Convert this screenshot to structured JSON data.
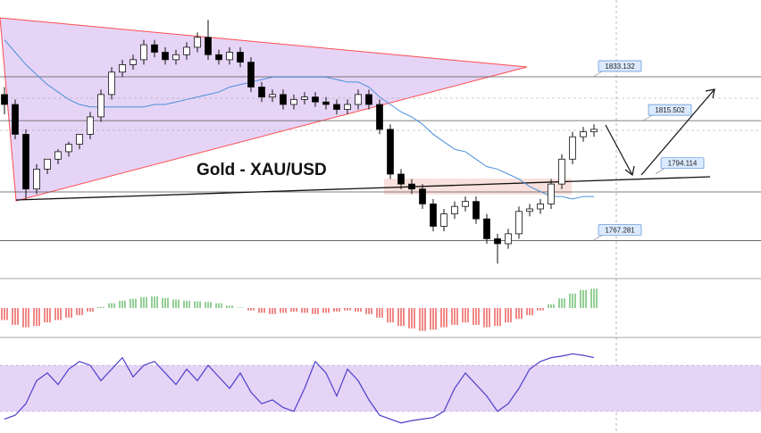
{
  "chart_data": [
    {
      "type": "candlestick",
      "title": "Gold - XAU/USD",
      "up_color": "#ffffff",
      "down_color": "#000000",
      "ylim": [
        1752,
        1864
      ],
      "levels": [
        1833.132,
        1815.502,
        1794.114,
        1767.281
      ],
      "open": [
        1826,
        1822,
        1810,
        1788,
        1796,
        1800,
        1803,
        1806,
        1810,
        1817,
        1826,
        1835,
        1838,
        1840,
        1846,
        1843,
        1840,
        1842,
        1845,
        1849,
        1842,
        1840,
        1843,
        1839,
        1829,
        1825,
        1826,
        1822,
        1824,
        1825,
        1823,
        1822,
        1820,
        1822,
        1826,
        1822,
        1812,
        1794,
        1790,
        1788,
        1782,
        1773,
        1778,
        1781,
        1783,
        1776,
        1768,
        1766,
        1770,
        1779,
        1780,
        1782,
        1790,
        1800,
        1809,
        1811
      ],
      "high": [
        1829,
        1824,
        1812,
        1798,
        1800,
        1804,
        1807,
        1810,
        1819,
        1828,
        1837,
        1840,
        1842,
        1848,
        1848,
        1845,
        1844,
        1847,
        1851,
        1856,
        1844,
        1845,
        1845,
        1841,
        1831,
        1828,
        1828,
        1826,
        1827,
        1827,
        1825,
        1824,
        1824,
        1828,
        1828,
        1824,
        1814,
        1796,
        1792,
        1790,
        1784,
        1780,
        1783,
        1785,
        1785,
        1778,
        1770,
        1772,
        1781,
        1782,
        1784,
        1792,
        1802,
        1811,
        1813,
        1814
      ],
      "low": [
        1818,
        1808,
        1784,
        1786,
        1794,
        1798,
        1801,
        1804,
        1808,
        1815,
        1824,
        1833,
        1836,
        1838,
        1841,
        1838,
        1838,
        1840,
        1843,
        1840,
        1838,
        1838,
        1837,
        1827,
        1823,
        1823,
        1820,
        1820,
        1822,
        1821,
        1820,
        1818,
        1818,
        1820,
        1820,
        1810,
        1792,
        1788,
        1786,
        1780,
        1771,
        1771,
        1776,
        1779,
        1774,
        1766,
        1758,
        1764,
        1768,
        1777,
        1778,
        1780,
        1788,
        1798,
        1807,
        1809
      ],
      "close": [
        1822,
        1810,
        1788,
        1796,
        1800,
        1803,
        1806,
        1810,
        1817,
        1826,
        1835,
        1838,
        1840,
        1846,
        1843,
        1840,
        1842,
        1845,
        1849,
        1842,
        1840,
        1843,
        1839,
        1829,
        1825,
        1826,
        1822,
        1824,
        1825,
        1823,
        1822,
        1820,
        1822,
        1826,
        1822,
        1812,
        1794,
        1790,
        1788,
        1782,
        1773,
        1778,
        1781,
        1783,
        1776,
        1768,
        1766,
        1770,
        1779,
        1780,
        1782,
        1790,
        1800,
        1809,
        1811,
        1812
      ],
      "ma": {
        "color": "#4a90d9",
        "values": [
          1848,
          1843,
          1838,
          1834,
          1830,
          1827,
          1824,
          1822,
          1821,
          1821,
          1821,
          1821,
          1821,
          1821,
          1822,
          1822,
          1823,
          1824,
          1825,
          1826,
          1827,
          1829,
          1830,
          1831,
          1832,
          1833,
          1833,
          1833,
          1833,
          1833,
          1833,
          1832,
          1831,
          1831,
          1829,
          1825,
          1822,
          1819,
          1817,
          1814,
          1810,
          1807,
          1804,
          1803,
          1800,
          1797,
          1796,
          1794,
          1792,
          1789,
          1787,
          1785,
          1785,
          1784,
          1785,
          1785
        ]
      }
    },
    {
      "type": "bar",
      "up_color": "#4caf50",
      "down_color": "#e53935",
      "ylim": [
        -1,
        1
      ],
      "values": [
        -0.5,
        -0.7,
        -0.8,
        -0.75,
        -0.6,
        -0.5,
        -0.4,
        -0.3,
        -0.15,
        0.05,
        0.2,
        0.3,
        0.38,
        0.45,
        0.48,
        0.42,
        0.35,
        0.3,
        0.28,
        0.25,
        0.2,
        0.1,
        0.02,
        -0.1,
        -0.2,
        -0.25,
        -0.2,
        -0.15,
        -0.2,
        -0.25,
        -0.2,
        -0.15,
        -0.1,
        -0.15,
        -0.25,
        -0.4,
        -0.6,
        -0.75,
        -0.85,
        -0.95,
        -0.9,
        -0.8,
        -0.7,
        -0.6,
        -0.7,
        -0.8,
        -0.75,
        -0.6,
        -0.45,
        -0.3,
        -0.1,
        0.15,
        0.4,
        0.6,
        0.75,
        0.8
      ]
    },
    {
      "type": "line",
      "color": "#4b3fc8",
      "ylim": [
        0,
        100
      ],
      "band": [
        20,
        80
      ],
      "values": [
        10,
        15,
        30,
        60,
        70,
        55,
        75,
        85,
        80,
        60,
        75,
        90,
        65,
        80,
        85,
        70,
        55,
        75,
        60,
        80,
        65,
        50,
        70,
        45,
        30,
        35,
        25,
        20,
        50,
        85,
        70,
        40,
        75,
        60,
        35,
        15,
        10,
        5,
        8,
        10,
        12,
        20,
        50,
        70,
        55,
        40,
        20,
        30,
        50,
        75,
        85,
        90,
        92,
        95,
        93,
        90
      ]
    }
  ]
}
